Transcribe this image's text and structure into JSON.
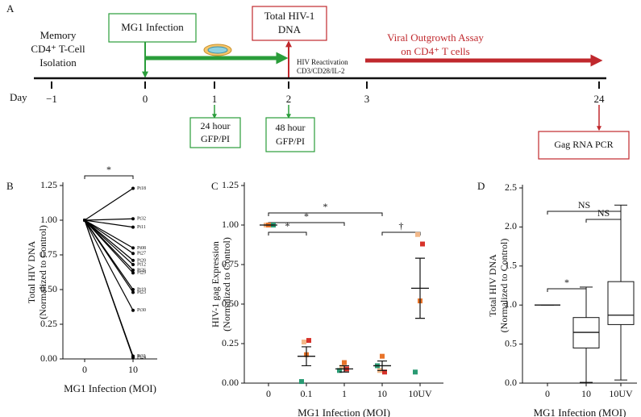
{
  "timeline": {
    "label": "A",
    "day_label": "Day",
    "days": [
      {
        "value": -1,
        "label": "−1"
      },
      0,
      1,
      2,
      3,
      24
    ],
    "isolation": [
      "Memory",
      "CD4⁺ T-Cell",
      "Isolation"
    ],
    "infection": "MG1 Infection",
    "dna": [
      "Total HIV-1",
      "DNA"
    ],
    "reactivation": [
      "HIV Reactivation",
      "CD3/CD28/IL-2"
    ],
    "outgrowth": [
      "Viral Outgrowth Assay",
      "on CD4⁺ T cells"
    ],
    "gfp24": [
      "24 hour",
      "GFP/PI"
    ],
    "gfp48": [
      "48 hour",
      "GFP/PI"
    ],
    "pcr": "Gag RNA PCR"
  },
  "chart_data": [
    {
      "type": "line",
      "label": "B",
      "ylabel": [
        "Total HIV DNA",
        "(Normalized to Control)"
      ],
      "xlabel": "MG1 Infection (MOI)",
      "categories": [
        "0",
        "10"
      ],
      "ylim": [
        0,
        1.25
      ],
      "yticks": [
        {
          "value": 0,
          "label": "0.00"
        },
        {
          "value": 0.25,
          "label": "0.25"
        },
        {
          "value": 0.5,
          "label": "0.50"
        },
        {
          "value": 0.75,
          "label": "0.75"
        },
        {
          "value": 1,
          "label": "1.00"
        },
        {
          "value": 1.25,
          "label": "1.25"
        }
      ],
      "series": [
        {
          "name": "Pt18",
          "color": "#000000",
          "values": [
            1,
            1.23
          ]
        },
        {
          "name": "Pt32",
          "color": "#000000",
          "values": [
            1,
            1.01
          ]
        },
        {
          "name": "Pt11",
          "color": "#000000",
          "values": [
            1,
            0.95
          ]
        },
        {
          "name": "Pt08",
          "color": "#000000",
          "values": [
            1,
            0.8
          ]
        },
        {
          "name": "Pt27",
          "color": "#000000",
          "values": [
            1,
            0.76
          ]
        },
        {
          "name": "Pt20",
          "color": "#000000",
          "values": [
            1,
            0.71
          ]
        },
        {
          "name": "Pt12",
          "color": "#000000",
          "values": [
            1,
            0.68
          ]
        },
        {
          "name": "Pt26",
          "color": "#000000",
          "values": [
            1,
            0.64
          ]
        },
        {
          "name": "Pt29",
          "color": "#000000",
          "values": [
            1,
            0.62
          ]
        },
        {
          "name": "Pt19",
          "color": "#000000",
          "values": [
            1,
            0.5
          ]
        },
        {
          "name": "Pt23",
          "color": "#000000",
          "values": [
            1,
            0.48
          ]
        },
        {
          "name": "Pt30",
          "color": "#000000",
          "values": [
            1,
            0.35
          ]
        },
        {
          "name": "Pt31",
          "color": "#000000",
          "values": [
            1,
            0.02
          ]
        },
        {
          "name": "Pt24",
          "color": "#000000",
          "values": [
            1,
            0.01
          ]
        }
      ],
      "annotations": [
        {
          "text": "*",
          "from": "0",
          "to": "10"
        }
      ]
    },
    {
      "type": "scatter",
      "label": "C",
      "ylabel": [
        "HIV-1 gag Expression",
        "(Normalized to Control)"
      ],
      "xlabel": "MG1 Infection (MOI)",
      "categories": [
        "0",
        "0.1",
        "1",
        "10",
        "10UV"
      ],
      "ylim": [
        0,
        1.25
      ],
      "yticks": [
        {
          "value": 0,
          "label": "0.00"
        },
        {
          "value": 0.25,
          "label": "0.25"
        },
        {
          "value": 0.5,
          "label": "0.50"
        },
        {
          "value": 0.75,
          "label": "0.75"
        },
        {
          "value": 1,
          "label": "1.00"
        },
        {
          "value": 1.25,
          "label": "1.25"
        }
      ],
      "series": [
        {
          "color": "#d7322a",
          "values": [
            1,
            0.27,
            0.09,
            0.07,
            0.88
          ]
        },
        {
          "color": "#f3b98a",
          "values": [
            1,
            0.26,
            0.1,
            0.08,
            0.94
          ]
        },
        {
          "color": "#e8742a",
          "values": [
            1,
            0.18,
            0.13,
            0.17,
            0.52
          ]
        },
        {
          "color": "#2a9a73",
          "values": [
            1,
            0.01,
            0.08,
            0.11,
            0.07
          ]
        }
      ],
      "mean": [
        1,
        0.17,
        0.09,
        0.11,
        0.6
      ],
      "sem": [
        0,
        0.06,
        0.02,
        0.03,
        0.19
      ],
      "annotations": [
        {
          "text": "*",
          "from": "0",
          "to": "0.1"
        },
        {
          "text": "*",
          "from": "0",
          "to": "1"
        },
        {
          "text": "*",
          "from": "0",
          "to": "10"
        },
        {
          "text": "†",
          "from": "10",
          "to": "10UV"
        }
      ]
    },
    {
      "type": "box",
      "label": "D",
      "ylabel": [
        "Total HIV DNA",
        "(Normalized to Control)"
      ],
      "xlabel": "MG1 Infection (MOI)",
      "categories": [
        "0",
        "10",
        "10UV"
      ],
      "ylim": [
        0,
        2.5
      ],
      "yticks": [
        {
          "value": 0,
          "label": "0.0"
        },
        {
          "value": 0.5,
          "label": "0.5"
        },
        {
          "value": 1,
          "label": "1.0"
        },
        {
          "value": 1.5,
          "label": "1.5"
        },
        {
          "value": 2,
          "label": "2.0"
        },
        {
          "value": 2.5,
          "label": "2.5"
        }
      ],
      "min": [
        1,
        0.01,
        0.04
      ],
      "q1": [
        1,
        0.45,
        0.75
      ],
      "median": [
        1,
        0.65,
        0.87
      ],
      "q3": [
        1,
        0.84,
        1.3
      ],
      "max": [
        1,
        1.23,
        2.28
      ],
      "annotations": [
        {
          "text": "NS",
          "from": "0",
          "to": "10UV"
        },
        {
          "text": "NS",
          "from": "10",
          "to": "10UV"
        },
        {
          "text": "*",
          "from": "0",
          "to": "10"
        }
      ]
    }
  ]
}
